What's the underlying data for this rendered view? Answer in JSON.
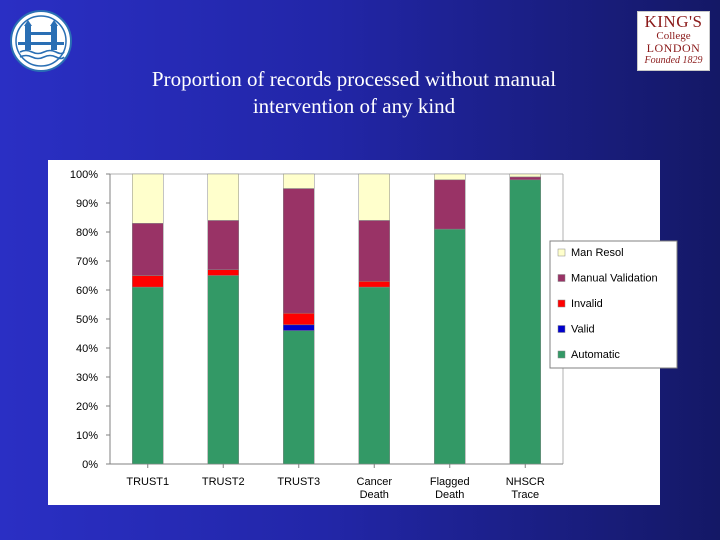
{
  "slide": {
    "title_line1": "Proportion of records processed without manual",
    "title_line2": "intervention of any kind"
  },
  "logos": {
    "kings_line1": "KING'S",
    "kings_line2": "College",
    "kings_line3": "LONDON",
    "kings_line4": "Founded 1829"
  },
  "colors": {
    "background": "#2226a8",
    "chart_background": "#ffffff",
    "automatic": "#339966",
    "valid": "#0000cc",
    "invalid": "#ff0000",
    "manual_validation": "#993366",
    "man_resol": "#ffffcc"
  },
  "chart_data": {
    "type": "bar",
    "stacked": true,
    "title": "",
    "xlabel": "",
    "ylabel": "",
    "ylim": [
      0,
      100
    ],
    "y_ticks": [
      "0%",
      "10%",
      "20%",
      "30%",
      "40%",
      "50%",
      "60%",
      "70%",
      "80%",
      "90%",
      "100%"
    ],
    "categories": [
      [
        "TRUST1"
      ],
      [
        "TRUST2"
      ],
      [
        "TRUST3"
      ],
      [
        "Cancer",
        "Death"
      ],
      [
        "Flagged",
        "Death"
      ],
      [
        "NHSCR",
        "Trace"
      ]
    ],
    "legend_placement": "right",
    "legend_order": [
      "Man Resol",
      "Manual Validation",
      "Invalid",
      "Valid",
      "Automatic"
    ],
    "series": [
      {
        "name": "Automatic",
        "color": "#339966",
        "values": [
          61,
          65,
          46,
          61,
          81,
          98
        ]
      },
      {
        "name": "Valid",
        "color": "#0000cc",
        "values": [
          0,
          0,
          2,
          0,
          0,
          0
        ]
      },
      {
        "name": "Invalid",
        "color": "#ff0000",
        "values": [
          4,
          2,
          4,
          2,
          0,
          0
        ]
      },
      {
        "name": "Manual Validation",
        "color": "#993366",
        "values": [
          18,
          17,
          43,
          21,
          17,
          1
        ]
      },
      {
        "name": "Man Resol",
        "color": "#ffffcc",
        "values": [
          17,
          16,
          5,
          16,
          2,
          1
        ]
      }
    ]
  }
}
